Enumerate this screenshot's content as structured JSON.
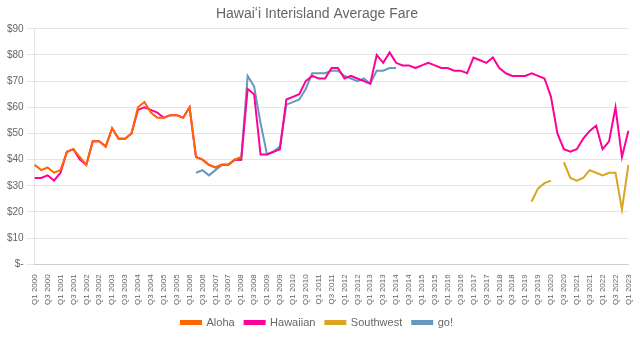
{
  "chart_data": {
    "type": "line",
    "title": "Hawaiʻi Interisland Average Fare",
    "categories": [
      "Q1 2000",
      null,
      "Q3 2000",
      null,
      "Q1 2001",
      null,
      "Q3 2001",
      null,
      "Q1 2002",
      null,
      "Q3 2002",
      null,
      "Q1 2003",
      null,
      "Q3 2003",
      null,
      "Q1 2004",
      null,
      "Q3 2004",
      null,
      "Q1 2005",
      null,
      "Q3 2005",
      null,
      "Q1 2006",
      null,
      "Q3 2006",
      null,
      "Q1 2007",
      null,
      "Q3 2007",
      null,
      "Q1 2008",
      null,
      "Q3 2008",
      null,
      "Q1 2009",
      null,
      "Q3 2009",
      null,
      "Q1 2010",
      null,
      "Q3 2010",
      null,
      "Q1 2011",
      null,
      "Q3 2011",
      null,
      "Q1 2012",
      null,
      "Q3 2012",
      null,
      "Q1 2013",
      null,
      "Q3 2013",
      null,
      "Q1 2014",
      null,
      "Q3 2014",
      null,
      "Q1 2015",
      null,
      "Q3 2015",
      null,
      "Q1 2016",
      null,
      "Q3 2016",
      null,
      "Q1 2017",
      null,
      "Q3 2017",
      null,
      "Q1 2018",
      null,
      "Q3 2018",
      null,
      "Q1 2019",
      null,
      "Q3 2019",
      null,
      "Q1 2020",
      null,
      "Q3 2020",
      null,
      "Q1 2021",
      null,
      "Q3 2021",
      null,
      "Q1 2022",
      null,
      "Q3 2022",
      null,
      "Q1 2023"
    ],
    "series": [
      {
        "name": "Aloha",
        "color": "#FF6600",
        "values": [
          38,
          36,
          37,
          35,
          36,
          43,
          44,
          41,
          38,
          47,
          47,
          45,
          52,
          48,
          48,
          50,
          60,
          62,
          58,
          56,
          56,
          57,
          57,
          56,
          60,
          41,
          40,
          38,
          37,
          38,
          38,
          40,
          41,
          null,
          null,
          null,
          null,
          null,
          null,
          null,
          null,
          null,
          null,
          null,
          null,
          null,
          null,
          null,
          null,
          null,
          null,
          null,
          null,
          null,
          null,
          null,
          null,
          null,
          null,
          null,
          null,
          null,
          null,
          null,
          null,
          null,
          null,
          null,
          null,
          null,
          null,
          null,
          null,
          null,
          null,
          null,
          null,
          null,
          null,
          null,
          null,
          null,
          null,
          null,
          null,
          null,
          null,
          null,
          null,
          null,
          null,
          null,
          null
        ]
      },
      {
        "name": "Hawaiian",
        "color": "#FF0099",
        "values": [
          33,
          33,
          34,
          32,
          35,
          43,
          44,
          40,
          38,
          47,
          47,
          45,
          52,
          48,
          48,
          50,
          59,
          60,
          59,
          58,
          56,
          57,
          57,
          56,
          60,
          41,
          40,
          38,
          37,
          38,
          38,
          40,
          40,
          67,
          65,
          42,
          42,
          43,
          44,
          63,
          64,
          65,
          70,
          72,
          71,
          71,
          75,
          75,
          71,
          72,
          71,
          70,
          69,
          80,
          77,
          81,
          77,
          76,
          76,
          75,
          76,
          77,
          76,
          75,
          75,
          74,
          74,
          73,
          79,
          78,
          77,
          79,
          75,
          73,
          72,
          72,
          72,
          73,
          72,
          71,
          64,
          50,
          44,
          43,
          44,
          48,
          51,
          53,
          44,
          47,
          60,
          41,
          51
        ]
      },
      {
        "name": "Southwest",
        "color": "#DAA520",
        "values": [
          null,
          null,
          null,
          null,
          null,
          null,
          null,
          null,
          null,
          null,
          null,
          null,
          null,
          null,
          null,
          null,
          null,
          null,
          null,
          null,
          null,
          null,
          null,
          null,
          null,
          null,
          null,
          null,
          null,
          null,
          null,
          null,
          null,
          null,
          null,
          null,
          null,
          null,
          null,
          null,
          null,
          null,
          null,
          null,
          null,
          null,
          null,
          null,
          null,
          null,
          null,
          null,
          null,
          null,
          null,
          null,
          null,
          null,
          null,
          null,
          null,
          null,
          null,
          null,
          null,
          null,
          null,
          null,
          null,
          null,
          null,
          null,
          null,
          null,
          null,
          null,
          null,
          24,
          29,
          31,
          32,
          null,
          39,
          33,
          32,
          33,
          36,
          35,
          34,
          35,
          35,
          21,
          38
        ]
      },
      {
        "name": "go!",
        "color": "#6699BB",
        "values": [
          null,
          null,
          null,
          null,
          null,
          null,
          null,
          null,
          null,
          null,
          null,
          null,
          null,
          null,
          null,
          null,
          null,
          null,
          null,
          null,
          null,
          null,
          null,
          null,
          null,
          35,
          36,
          34,
          36,
          38,
          38,
          40,
          40,
          72,
          68,
          54,
          42,
          43,
          45,
          61,
          62,
          63,
          67,
          73,
          73,
          73,
          74,
          74,
          72,
          71,
          70,
          71,
          69,
          74,
          74,
          75,
          75,
          null,
          null,
          null,
          null,
          null,
          null,
          null,
          null,
          null,
          null,
          null,
          null,
          null,
          null,
          null,
          null,
          null,
          null,
          null,
          null,
          null,
          null,
          null,
          null,
          null,
          null,
          null,
          null,
          null,
          null,
          null,
          null,
          null,
          null,
          null,
          null
        ]
      }
    ],
    "ylim": [
      0,
      90
    ],
    "yticks": [
      {
        "value": 0,
        "label": "$-"
      },
      {
        "value": 10,
        "label": "$10"
      },
      {
        "value": 20,
        "label": "$20"
      },
      {
        "value": 30,
        "label": "$30"
      },
      {
        "value": 40,
        "label": "$40"
      },
      {
        "value": 50,
        "label": "$50"
      },
      {
        "value": 60,
        "label": "$60"
      },
      {
        "value": 70,
        "label": "$70"
      },
      {
        "value": 80,
        "label": "$80"
      },
      {
        "value": 90,
        "label": "$90"
      }
    ],
    "grid": true,
    "legend": "bottom"
  }
}
